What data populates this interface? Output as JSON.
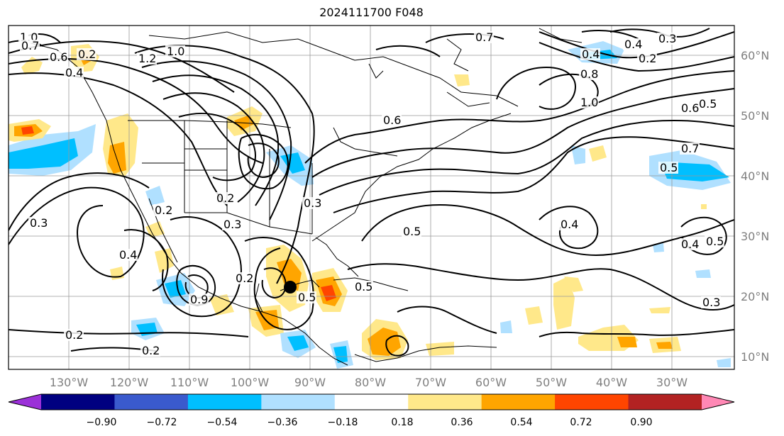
{
  "title": "2024111700 F048",
  "lon_labels": [
    "130°W",
    "120°W",
    "110°W",
    "100°W",
    "90°W",
    "80°W",
    "70°W",
    "60°W",
    "50°W",
    "40°W",
    "30°W"
  ],
  "lat_labels": [
    "60°N",
    "50°N",
    "40°N",
    "30°N",
    "20°N",
    "10°N"
  ],
  "colorbar": {
    "ticks": [
      "−0.90",
      "−0.72",
      "−0.54",
      "−0.36",
      "−0.18",
      "0.18",
      "0.36",
      "0.54",
      "0.72",
      "0.90"
    ],
    "colors": [
      "#9b30d8",
      "#000080",
      "#3a5acd",
      "#00bfff",
      "#b0e0ff",
      "#ffffff",
      "#ffe88a",
      "#ffa500",
      "#ff4500",
      "#b22222",
      "#ff88b5"
    ]
  },
  "contour_labels": [
    "1.0",
    "0.7",
    "0.6",
    "0.2",
    "0.4",
    "1.2",
    "1.0",
    "0.7",
    "0.4",
    "0.2",
    "0.3",
    "0.4",
    "0.8",
    "1.0",
    "0.5",
    "0.6",
    "0.6",
    "0.7",
    "0.5",
    "0.2",
    "0.3",
    "0.3",
    "0.2",
    "0.3",
    "0.5",
    "0.4",
    "0.4",
    "0.5",
    "0.3",
    "0.2",
    "0.2",
    "0.4",
    "0.9",
    "0.5",
    "0.2",
    "0.5"
  ],
  "marker_icon": "storm-center-dot"
}
